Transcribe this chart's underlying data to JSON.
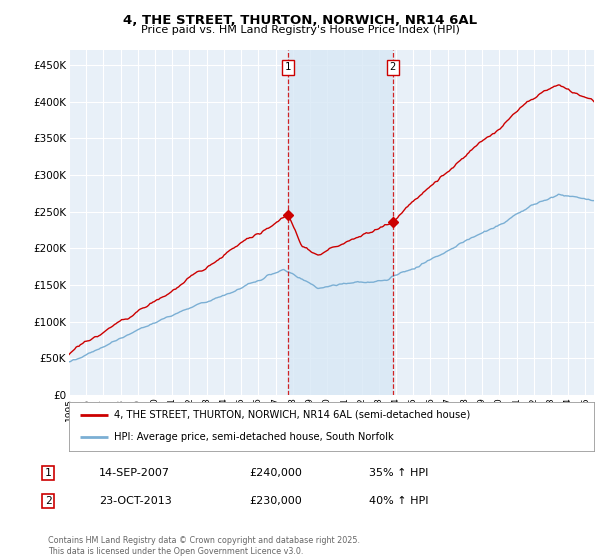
{
  "title": "4, THE STREET, THURTON, NORWICH, NR14 6AL",
  "subtitle": "Price paid vs. HM Land Registry's House Price Index (HPI)",
  "ylabel_ticks": [
    "£0",
    "£50K",
    "£100K",
    "£150K",
    "£200K",
    "£250K",
    "£300K",
    "£350K",
    "£400K",
    "£450K"
  ],
  "ytick_values": [
    0,
    50000,
    100000,
    150000,
    200000,
    250000,
    300000,
    350000,
    400000,
    450000
  ],
  "ylim": [
    0,
    470000
  ],
  "xlim_start": 1995.0,
  "xlim_end": 2025.5,
  "hpi_color": "#7bafd4",
  "price_color": "#cc0000",
  "marker1_year": 2007.71,
  "marker2_year": 2013.81,
  "marker1_price": 240000,
  "marker2_price": 230000,
  "shade_color": "#d8e8f5",
  "legend_label_price": "4, THE STREET, THURTON, NORWICH, NR14 6AL (semi-detached house)",
  "legend_label_hpi": "HPI: Average price, semi-detached house, South Norfolk",
  "annotation1": [
    "1",
    "14-SEP-2007",
    "£240,000",
    "35% ↑ HPI"
  ],
  "annotation2": [
    "2",
    "23-OCT-2013",
    "£230,000",
    "40% ↑ HPI"
  ],
  "footer": "Contains HM Land Registry data © Crown copyright and database right 2025.\nThis data is licensed under the Open Government Licence v3.0.",
  "bg_color": "#ffffff",
  "plot_bg_color": "#e8f0f8",
  "grid_color": "#ffffff"
}
